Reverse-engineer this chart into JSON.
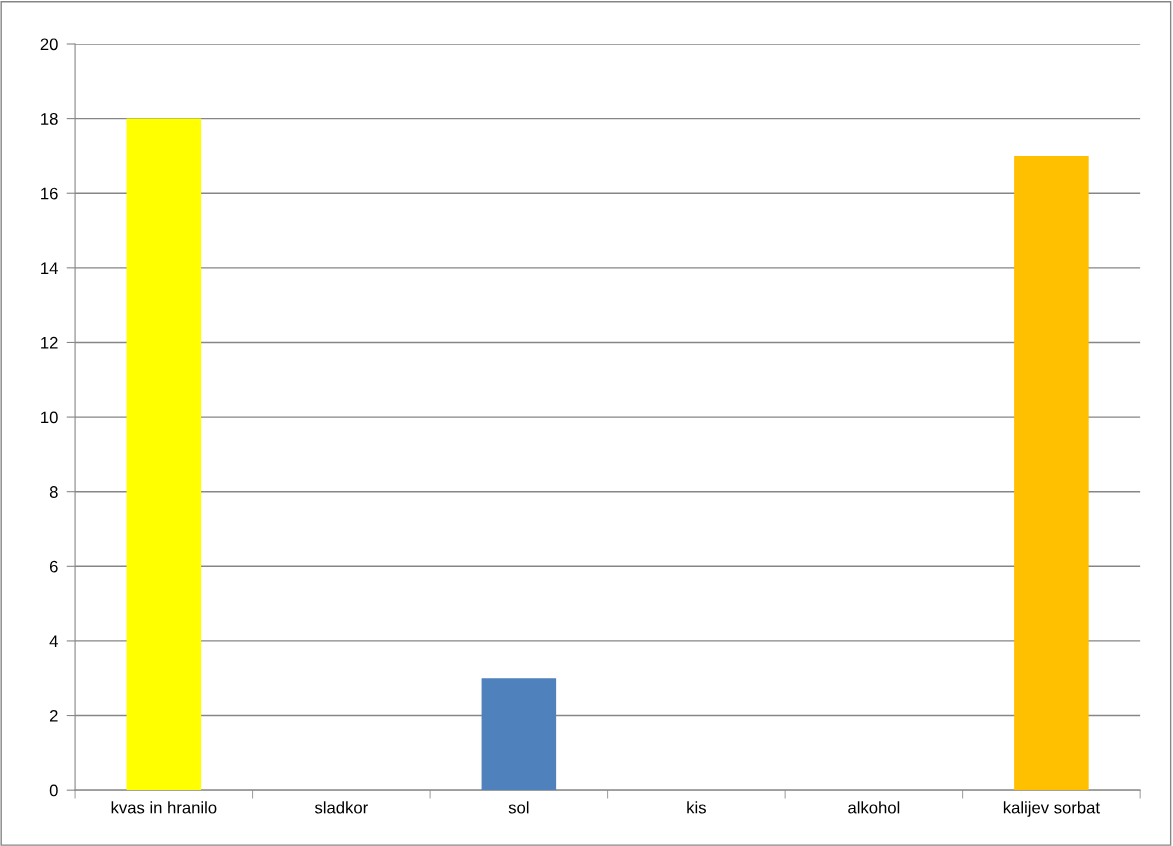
{
  "chart_data": {
    "type": "bar",
    "categories": [
      "kvas in hranilo",
      "sladkor",
      "sol",
      "kis",
      "alkohol",
      "kalijev sorbat"
    ],
    "values": [
      18,
      0,
      3,
      0,
      0,
      17
    ],
    "colors": [
      "#ffff00",
      "#4f81bd",
      "#4f81bd",
      "#4f81bd",
      "#4f81bd",
      "#ffc000"
    ],
    "ylim": [
      0,
      20
    ],
    "yticks": [
      0,
      2,
      4,
      6,
      8,
      10,
      12,
      14,
      16,
      18,
      20
    ],
    "grid": "y",
    "legend": false
  }
}
